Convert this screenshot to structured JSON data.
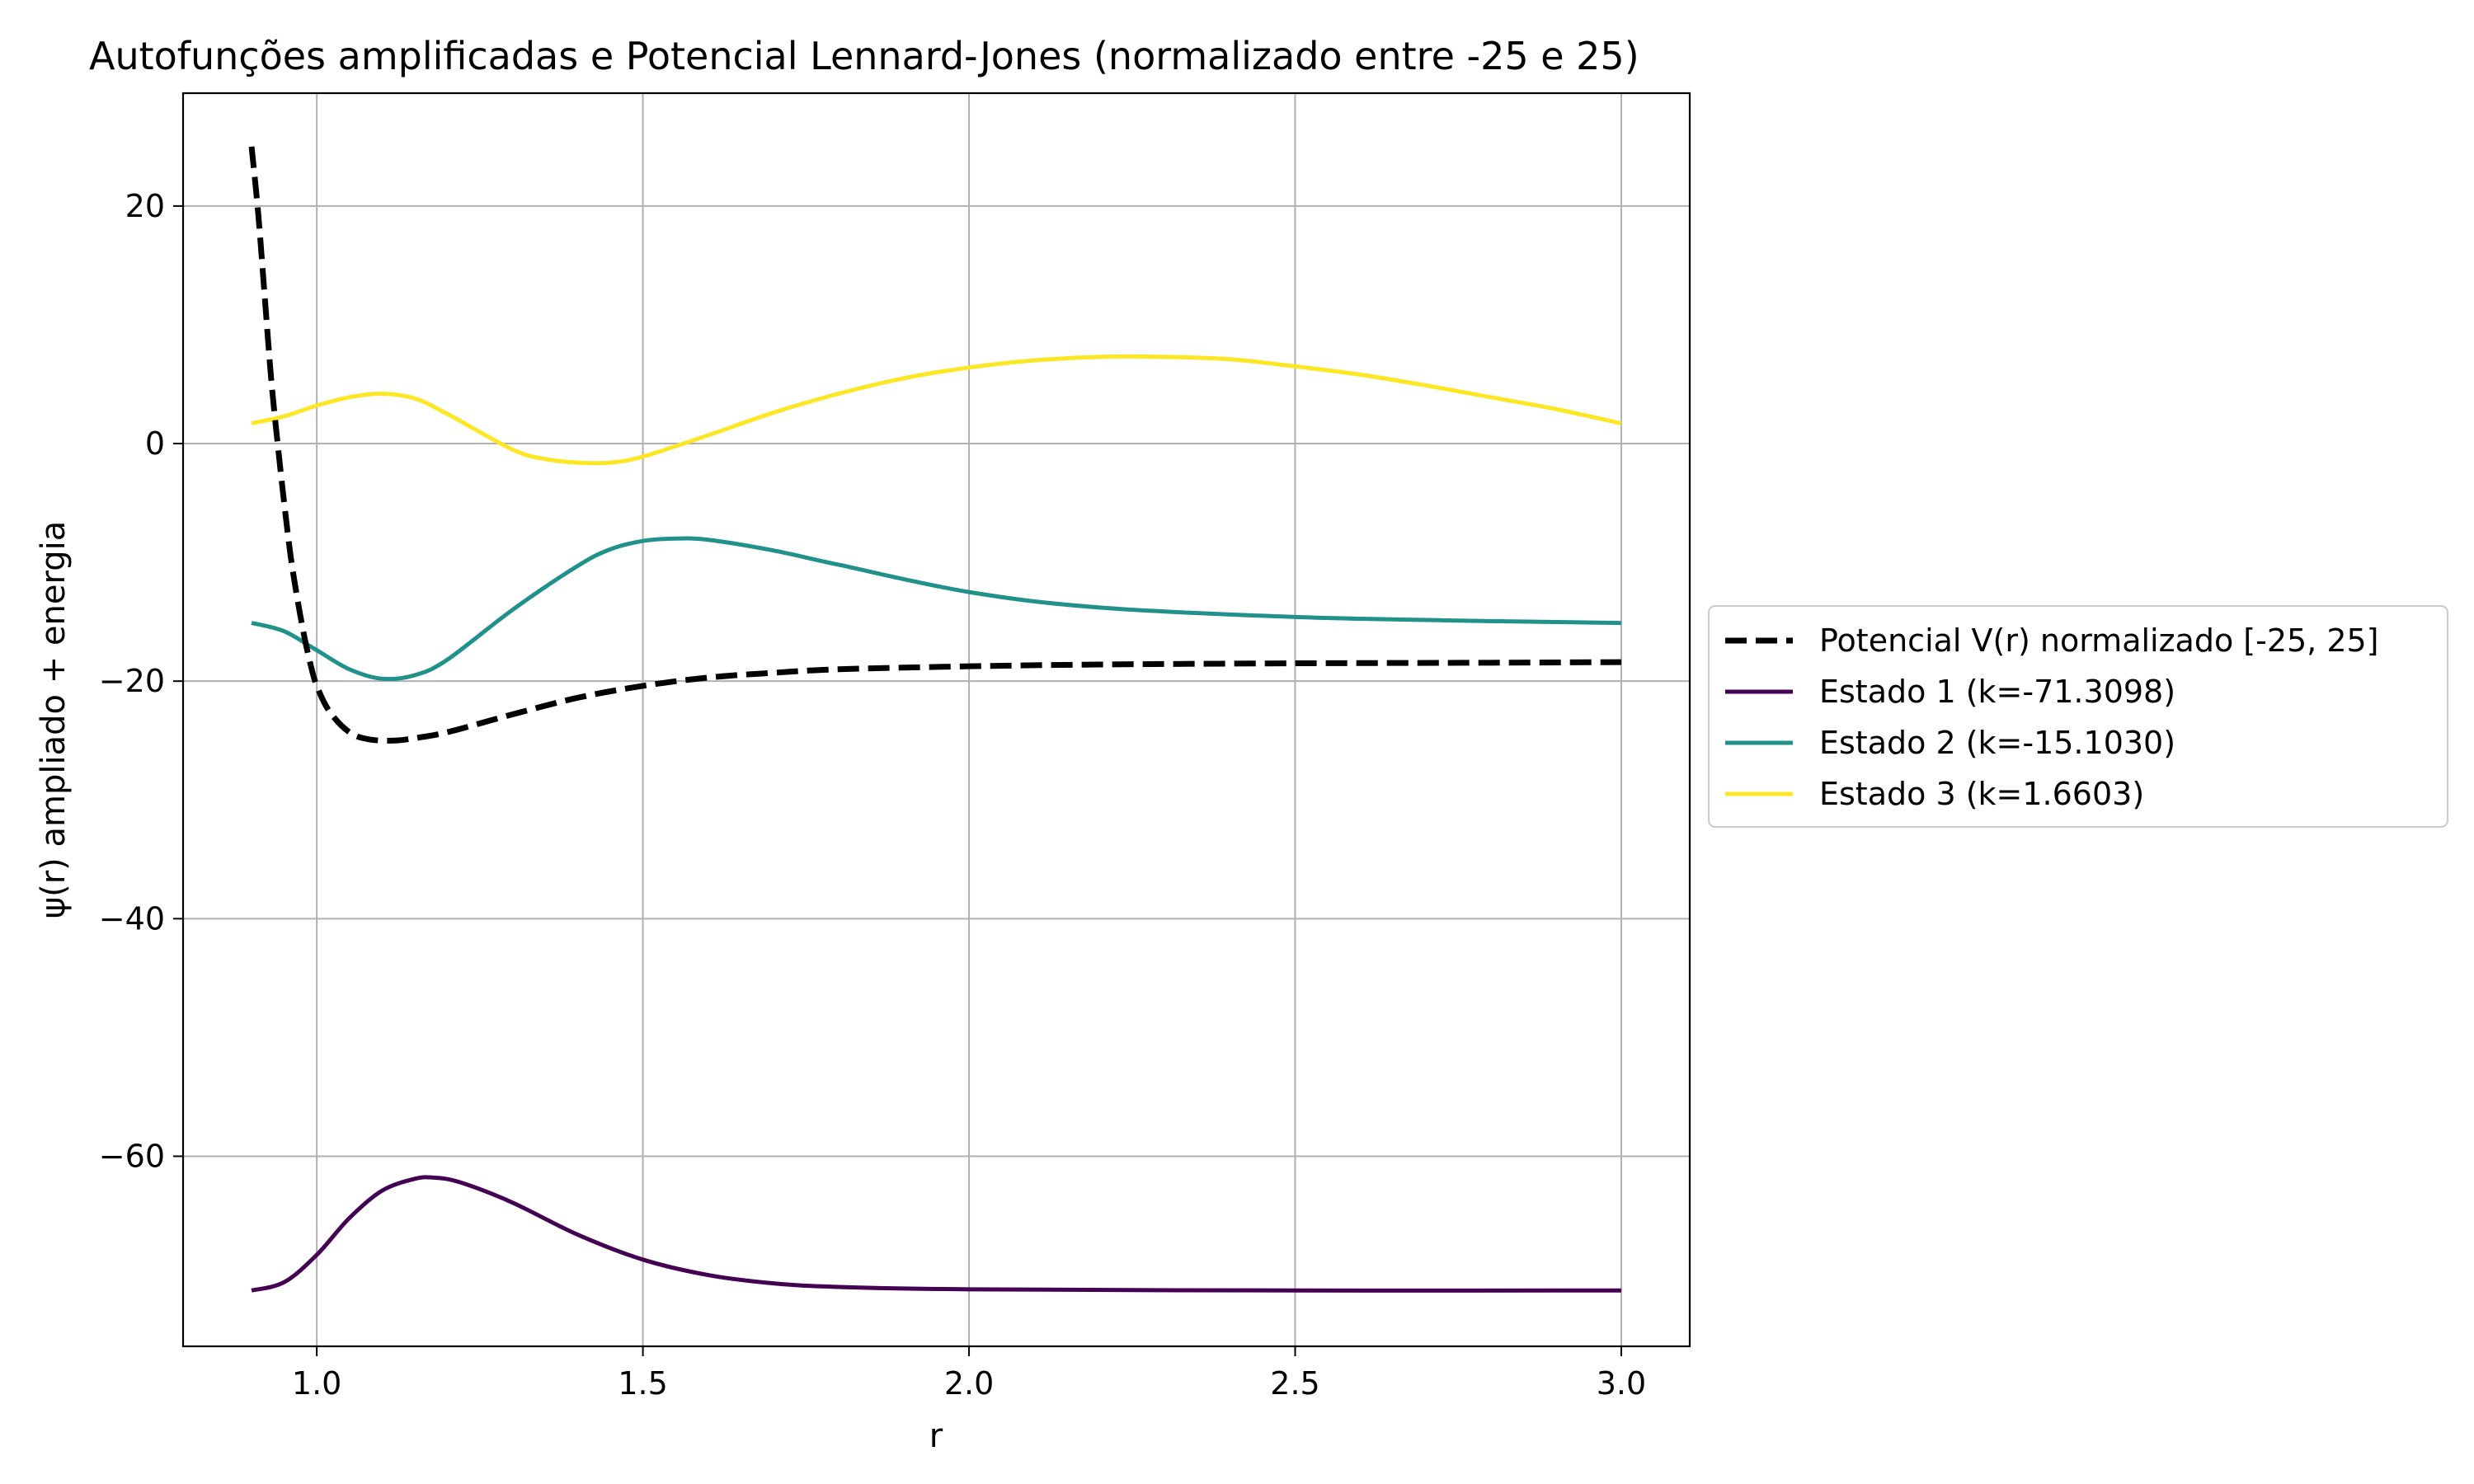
{
  "chart_data": {
    "type": "line",
    "title": "Autofunções amplificadas e Potencial Lennard-Jones (normalizado entre -25 e 25)",
    "xlabel": "r",
    "ylabel": "ψ(r) ampliado + energia",
    "xlim": [
      0.795,
      3.105
    ],
    "ylim": [
      -76,
      29.5
    ],
    "xticks": [
      1.0,
      1.5,
      2.0,
      2.5,
      3.0
    ],
    "xtick_labels": [
      "1.0",
      "1.5",
      "2.0",
      "2.5",
      "3.0"
    ],
    "yticks": [
      20,
      0,
      -20,
      -40,
      -60
    ],
    "ytick_labels": [
      "20",
      "0",
      "−20",
      "−40",
      "−60"
    ],
    "grid": true,
    "legend_position": "right, outside plot",
    "series": [
      {
        "name": "Potencial V(r) normalizado [-25, 25]",
        "color": "#000000",
        "style": "dashed",
        "points": [
          [
            0.9,
            25.0
          ],
          [
            0.91,
            19.5
          ],
          [
            0.92,
            12.5
          ],
          [
            0.93,
            5.5
          ],
          [
            0.94,
            0.0
          ],
          [
            0.95,
            -5.0
          ],
          [
            0.96,
            -9.5
          ],
          [
            0.97,
            -13.0
          ],
          [
            0.98,
            -16.0
          ],
          [
            0.99,
            -18.5
          ],
          [
            1.0,
            -20.4
          ],
          [
            1.02,
            -22.6
          ],
          [
            1.05,
            -24.3
          ],
          [
            1.08,
            -24.9
          ],
          [
            1.12,
            -25.0
          ],
          [
            1.15,
            -24.8
          ],
          [
            1.2,
            -24.3
          ],
          [
            1.3,
            -22.8
          ],
          [
            1.4,
            -21.4
          ],
          [
            1.5,
            -20.4
          ],
          [
            1.6,
            -19.7
          ],
          [
            1.7,
            -19.3
          ],
          [
            1.8,
            -19.0
          ],
          [
            2.0,
            -18.75
          ],
          [
            2.2,
            -18.6
          ],
          [
            2.5,
            -18.5
          ],
          [
            2.8,
            -18.45
          ],
          [
            3.0,
            -18.4
          ]
        ]
      },
      {
        "name": "Estado 1 (k=-71.3098)",
        "color": "#440154",
        "style": "solid",
        "points": [
          [
            0.9,
            -71.3
          ],
          [
            0.95,
            -70.6
          ],
          [
            1.0,
            -68.3
          ],
          [
            1.05,
            -65.2
          ],
          [
            1.1,
            -62.9
          ],
          [
            1.15,
            -61.9
          ],
          [
            1.18,
            -61.8
          ],
          [
            1.22,
            -62.2
          ],
          [
            1.3,
            -63.9
          ],
          [
            1.4,
            -66.6
          ],
          [
            1.5,
            -68.7
          ],
          [
            1.6,
            -70.0
          ],
          [
            1.7,
            -70.7
          ],
          [
            1.8,
            -71.0
          ],
          [
            2.0,
            -71.2
          ],
          [
            2.5,
            -71.3
          ],
          [
            3.0,
            -71.3
          ]
        ]
      },
      {
        "name": "Estado 2 (k=-15.1030)",
        "color": "#21918c",
        "style": "solid",
        "points": [
          [
            0.9,
            -15.1
          ],
          [
            0.95,
            -15.8
          ],
          [
            1.0,
            -17.4
          ],
          [
            1.05,
            -19.0
          ],
          [
            1.1,
            -19.8
          ],
          [
            1.15,
            -19.5
          ],
          [
            1.2,
            -18.2
          ],
          [
            1.3,
            -14.0
          ],
          [
            1.4,
            -10.3
          ],
          [
            1.45,
            -8.9
          ],
          [
            1.5,
            -8.2
          ],
          [
            1.55,
            -8.0
          ],
          [
            1.6,
            -8.1
          ],
          [
            1.7,
            -9.0
          ],
          [
            1.8,
            -10.2
          ],
          [
            2.0,
            -12.5
          ],
          [
            2.2,
            -13.8
          ],
          [
            2.5,
            -14.6
          ],
          [
            2.8,
            -14.95
          ],
          [
            3.0,
            -15.1
          ]
        ]
      },
      {
        "name": "Estado 3 (k=1.6603)",
        "color": "#fde725",
        "style": "solid",
        "points": [
          [
            0.9,
            1.7
          ],
          [
            0.95,
            2.3
          ],
          [
            1.0,
            3.2
          ],
          [
            1.05,
            3.9
          ],
          [
            1.1,
            4.2
          ],
          [
            1.15,
            3.8
          ],
          [
            1.2,
            2.5
          ],
          [
            1.3,
            -0.5
          ],
          [
            1.35,
            -1.3
          ],
          [
            1.4,
            -1.6
          ],
          [
            1.45,
            -1.6
          ],
          [
            1.5,
            -1.1
          ],
          [
            1.6,
            0.7
          ],
          [
            1.7,
            2.6
          ],
          [
            1.8,
            4.2
          ],
          [
            1.9,
            5.5
          ],
          [
            2.0,
            6.4
          ],
          [
            2.1,
            7.0
          ],
          [
            2.2,
            7.3
          ],
          [
            2.3,
            7.3
          ],
          [
            2.4,
            7.1
          ],
          [
            2.5,
            6.5
          ],
          [
            2.6,
            5.8
          ],
          [
            2.7,
            4.9
          ],
          [
            2.8,
            3.9
          ],
          [
            2.9,
            2.9
          ],
          [
            3.0,
            1.7
          ]
        ]
      }
    ]
  }
}
